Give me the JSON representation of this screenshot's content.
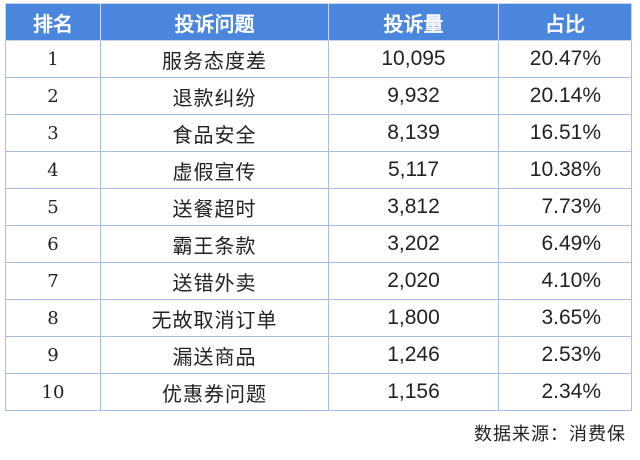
{
  "table": {
    "headers": [
      "排名",
      "投诉问题",
      "投诉量",
      "占比"
    ],
    "rows": [
      {
        "rank": "1",
        "issue": "服务态度差",
        "count": "10,095",
        "share": "20.47%"
      },
      {
        "rank": "2",
        "issue": "退款纠纷",
        "count": "9,932",
        "share": "20.14%"
      },
      {
        "rank": "3",
        "issue": "食品安全",
        "count": "8,139",
        "share": "16.51%"
      },
      {
        "rank": "4",
        "issue": "虚假宣传",
        "count": "5,117",
        "share": "10.38%"
      },
      {
        "rank": "5",
        "issue": "送餐超时",
        "count": "3,812",
        "share": "7.73%"
      },
      {
        "rank": "6",
        "issue": "霸王条款",
        "count": "3,202",
        "share": "6.49%"
      },
      {
        "rank": "7",
        "issue": "送错外卖",
        "count": "2,020",
        "share": "4.10%"
      },
      {
        "rank": "8",
        "issue": "无故取消订单",
        "count": "1,800",
        "share": "3.65%"
      },
      {
        "rank": "9",
        "issue": "漏送商品",
        "count": "1,246",
        "share": "2.53%"
      },
      {
        "rank": "10",
        "issue": "优惠券问题",
        "count": "1,156",
        "share": "2.34%"
      }
    ]
  },
  "source_note": "数据来源：消费保",
  "colors": {
    "header_bg": "#4a86dd",
    "header_text": "#ffffff",
    "border": "#a7bde6"
  }
}
